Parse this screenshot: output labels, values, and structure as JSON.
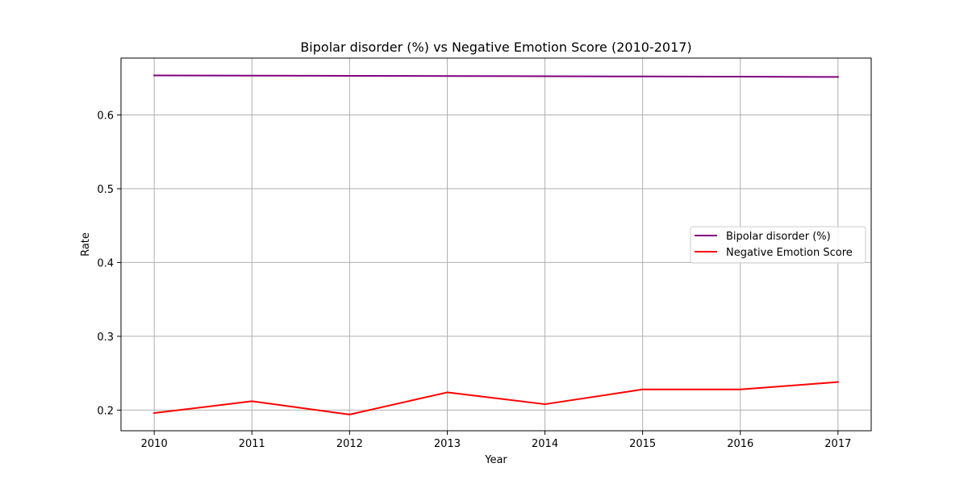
{
  "chart_data": {
    "type": "line",
    "title": "Bipolar disorder (%) vs Negative Emotion Score (2010-2017)",
    "xlabel": "Year",
    "ylabel": "Rate",
    "x": [
      2010,
      2011,
      2012,
      2013,
      2014,
      2015,
      2016,
      2017
    ],
    "xlim": [
      2009.66,
      2017.34
    ],
    "ylim": [
      0.172,
      0.677
    ],
    "yticks": [
      0.2,
      0.3,
      0.4,
      0.5,
      0.6
    ],
    "ytick_labels": [
      "0.2",
      "0.3",
      "0.4",
      "0.5",
      "0.6"
    ],
    "xtick_labels": [
      "2010",
      "2011",
      "2012",
      "2013",
      "2014",
      "2015",
      "2016",
      "2017"
    ],
    "grid": true,
    "legend_position": "center-right",
    "series": [
      {
        "name": "Bipolar disorder (%)",
        "color": "#800080",
        "values": [
          0.6535,
          0.6532,
          0.653,
          0.6527,
          0.6524,
          0.6521,
          0.6518,
          0.6514
        ]
      },
      {
        "name": "Negative Emotion Score",
        "color": "#ff0000",
        "values": [
          0.196,
          0.212,
          0.194,
          0.224,
          0.208,
          0.228,
          0.228,
          0.238
        ]
      }
    ]
  }
}
